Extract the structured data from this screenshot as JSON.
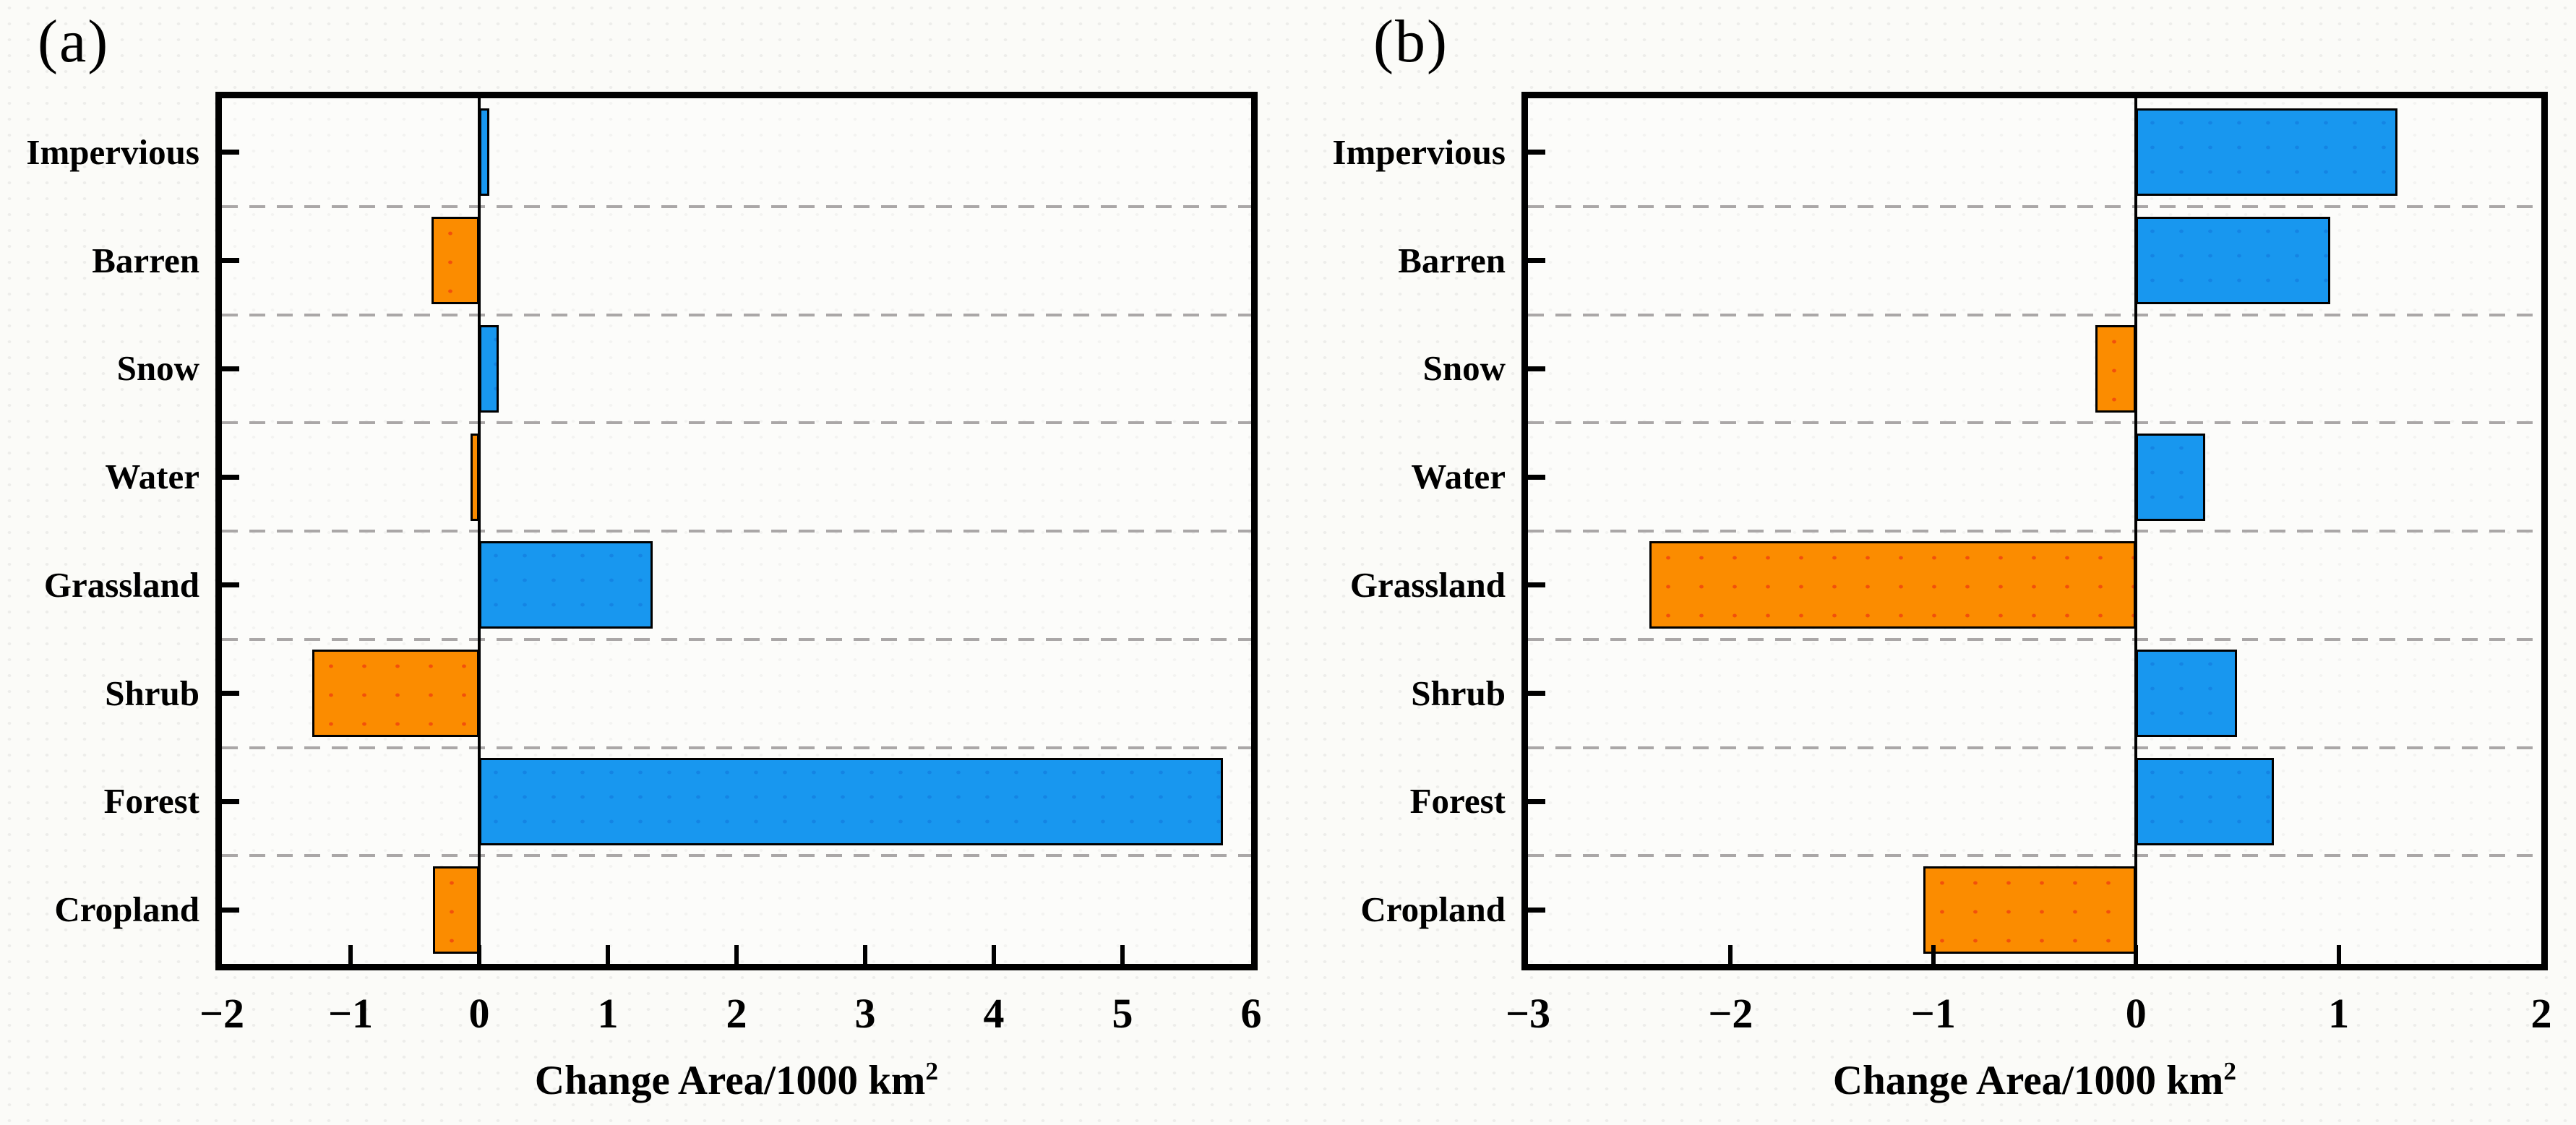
{
  "figure": {
    "description": "Two-panel horizontal diverging bar figure of land cover change area",
    "background": "#fbfbf8"
  },
  "style": {
    "increase_color": "#1897EF",
    "decrease_color": "#FB8C00",
    "bar_border_color": "#000000",
    "gridline_color": "#aaa7a7",
    "axis_color": "#000000"
  },
  "chart_data": [
    {
      "type": "bar",
      "orientation": "horizontal",
      "title": "(a)",
      "categories": [
        "Impervious",
        "Barren",
        "Snow",
        "Water",
        "Grassland",
        "Shrub",
        "Forest",
        "Cropland"
      ],
      "values": [
        0.08,
        -0.37,
        0.15,
        -0.07,
        1.35,
        -1.3,
        5.78,
        -0.36
      ],
      "xlabel_base": "Change Area/1000 km",
      "xlabel_sup": "2",
      "xlim": [
        -2,
        6
      ],
      "xticks": [
        -2,
        -1,
        0,
        1,
        2,
        3,
        4,
        5,
        6
      ],
      "xtick_labels": [
        "−2",
        "−1",
        "0",
        "1",
        "2",
        "3",
        "4",
        "5",
        "6"
      ],
      "grid": "dashed horizontal separators between category rows",
      "legend": "none",
      "positive_color": "#1897EF",
      "negative_color": "#FB8C00"
    },
    {
      "type": "bar",
      "orientation": "horizontal",
      "title": "(b)",
      "categories": [
        "Impervious",
        "Barren",
        "Snow",
        "Water",
        "Grassland",
        "Shrub",
        "Forest",
        "Cropland"
      ],
      "values": [
        1.29,
        0.96,
        -0.2,
        0.34,
        -2.4,
        0.5,
        0.68,
        -1.05
      ],
      "xlabel_base": "Change Area/1000 km",
      "xlabel_sup": "2",
      "xlim": [
        -3,
        2
      ],
      "xticks": [
        -3,
        -2,
        -1,
        0,
        1,
        2
      ],
      "xtick_labels": [
        "−3",
        "−2",
        "−1",
        "0",
        "1",
        "2"
      ],
      "grid": "dashed horizontal separators between category rows",
      "legend": "none",
      "positive_color": "#1897EF",
      "negative_color": "#FB8C00"
    }
  ]
}
